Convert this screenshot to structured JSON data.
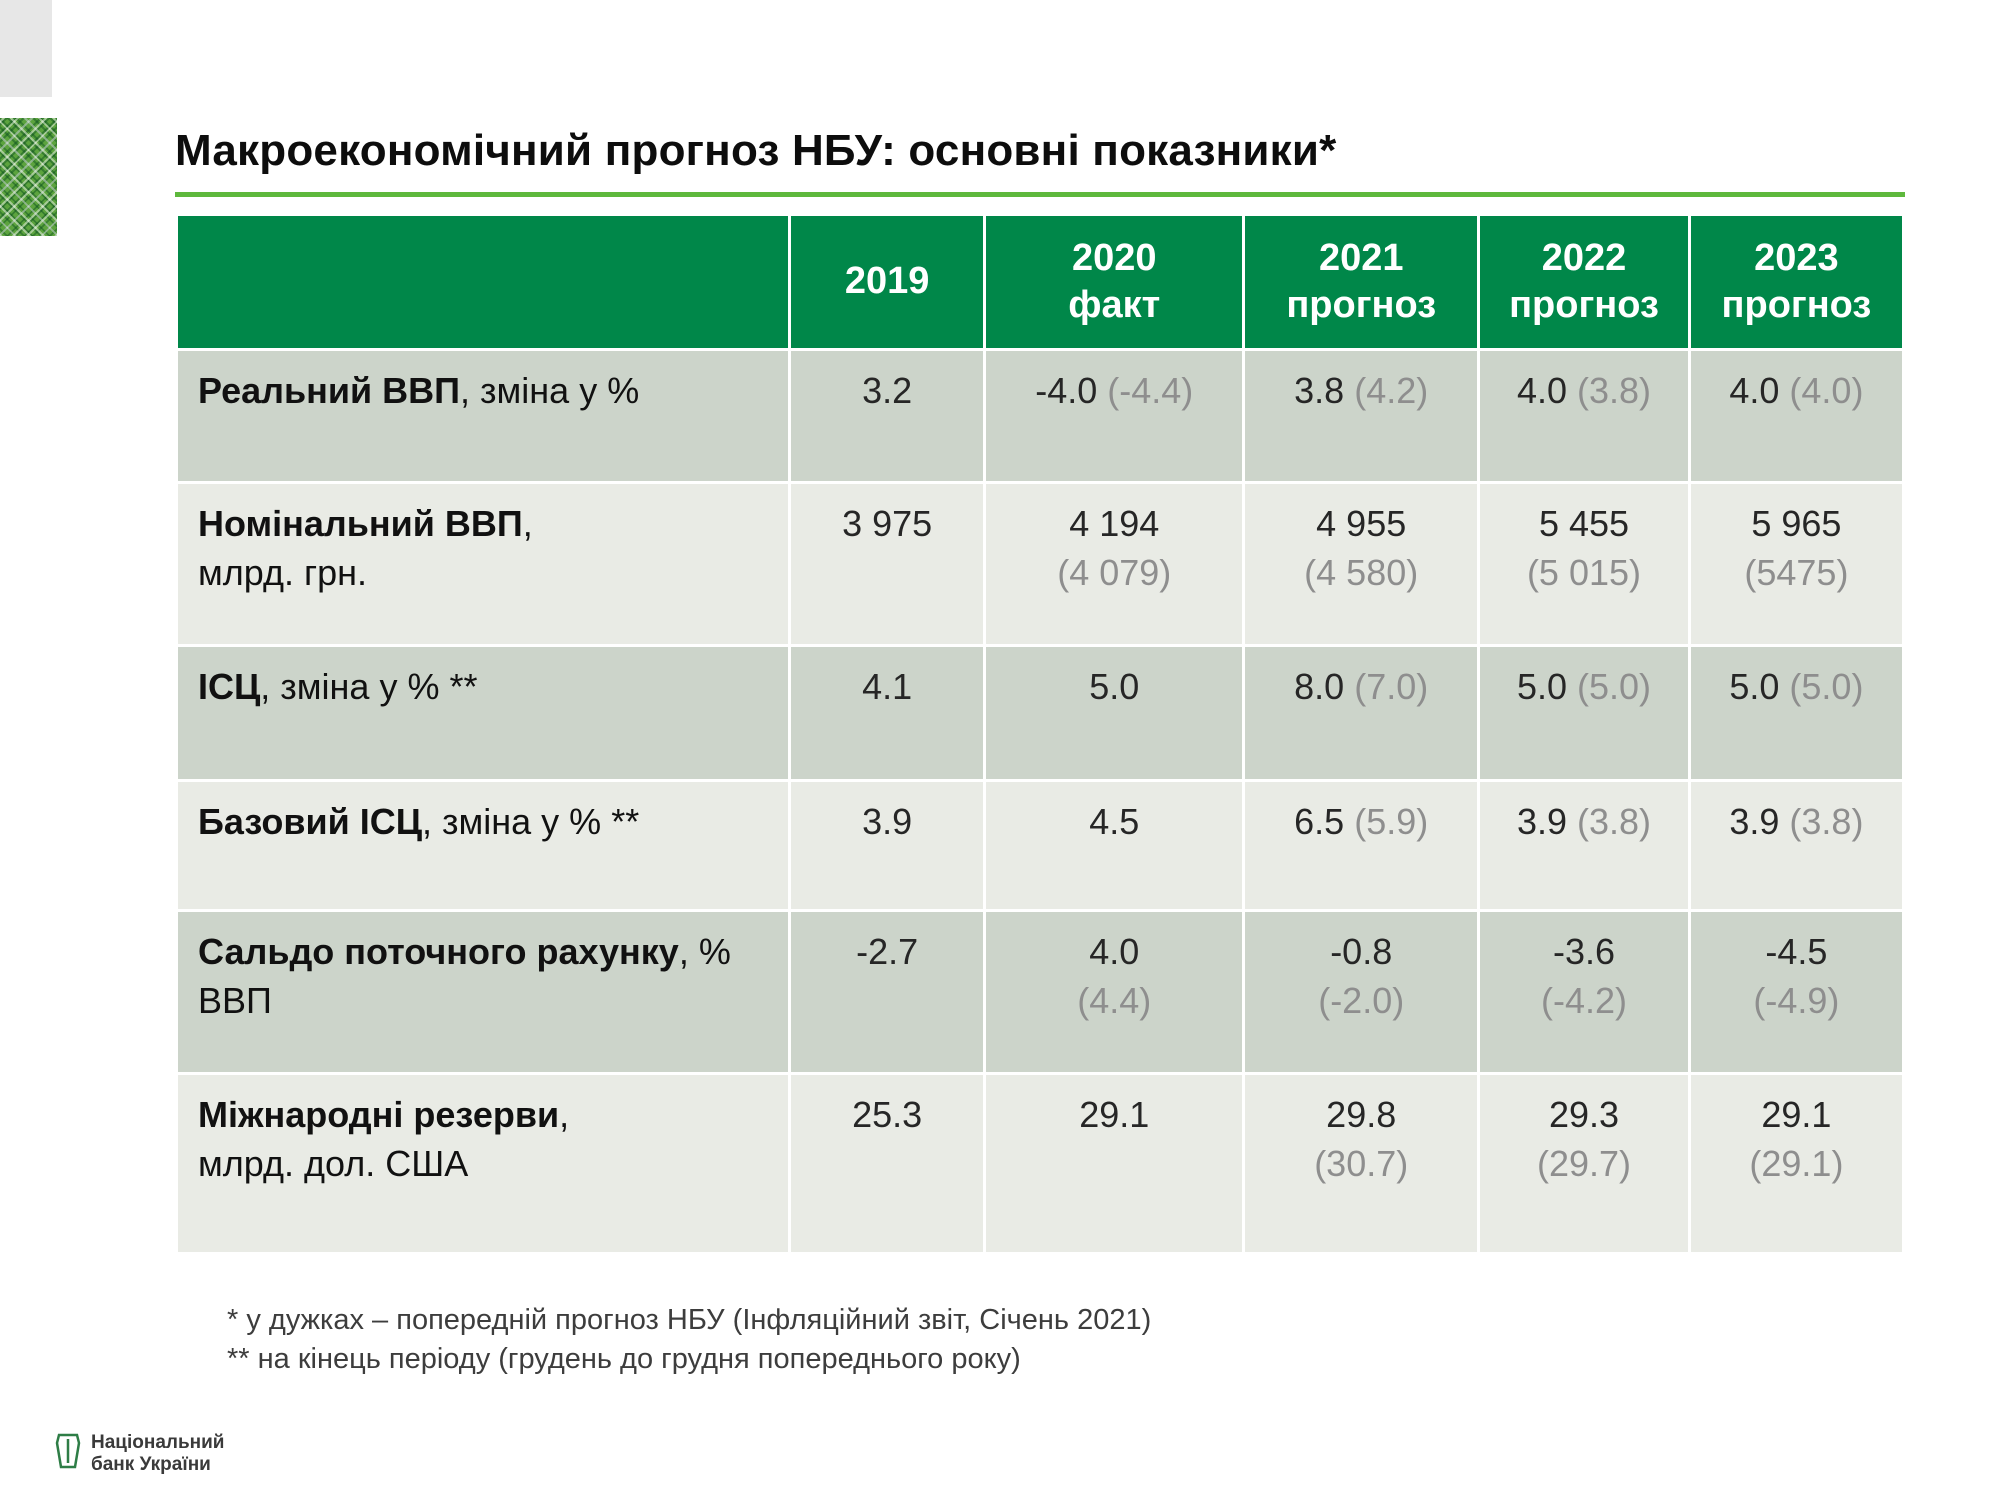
{
  "slide": {
    "title": "Макроекономічний прогноз НБУ: основні показники*",
    "footnote1": "* у дужках – попередній прогноз НБУ (Інфляційний звіт, Січень 2021)",
    "footnote2": "** на кінець періоду (грудень до грудня попереднього року)",
    "logo_line1": "Національний",
    "logo_line2": "банк України"
  },
  "colors": {
    "header_bg": "#008749",
    "row_dark": "#ccd4ca",
    "row_light": "#e9ebe5",
    "prev_text": "#8e8e8e",
    "accent_green": "#5eb83c"
  },
  "table": {
    "header": [
      {
        "lines": [
          ""
        ]
      },
      {
        "lines": [
          "2019"
        ]
      },
      {
        "lines": [
          "2020",
          "факт"
        ]
      },
      {
        "lines": [
          "2021",
          "прогноз"
        ]
      },
      {
        "lines": [
          "2022",
          "прогноз"
        ]
      },
      {
        "lines": [
          "2023",
          "прогноз"
        ]
      }
    ],
    "rows": [
      {
        "label_bold": "Реальний ВВП",
        "label_rest": ", зміна у %",
        "label_line2": "",
        "stacked": false,
        "cells": [
          {
            "main": "3.2",
            "prev": ""
          },
          {
            "main": "-4.0",
            "prev": "(-4.4)"
          },
          {
            "main": "3.8",
            "prev": "(4.2)"
          },
          {
            "main": "4.0",
            "prev": "(3.8)"
          },
          {
            "main": "4.0",
            "prev": "(4.0)"
          }
        ]
      },
      {
        "label_bold": "Номінальний ВВП",
        "label_rest": ",",
        "label_line2": "млрд. грн.",
        "stacked": true,
        "cells": [
          {
            "main": "3 975",
            "prev": ""
          },
          {
            "main": "4 194",
            "prev": "(4 079)"
          },
          {
            "main": "4 955",
            "prev": "(4 580)"
          },
          {
            "main": "5 455",
            "prev": "(5 015)"
          },
          {
            "main": "5 965",
            "prev": "(5475)"
          }
        ]
      },
      {
        "label_bold": "ІСЦ",
        "label_rest": ", зміна у % **",
        "label_line2": "",
        "stacked": false,
        "cells": [
          {
            "main": "4.1",
            "prev": ""
          },
          {
            "main": "5.0",
            "prev": ""
          },
          {
            "main": "8.0",
            "prev": "(7.0)"
          },
          {
            "main": "5.0",
            "prev": "(5.0)"
          },
          {
            "main": "5.0",
            "prev": "(5.0)"
          }
        ]
      },
      {
        "label_bold": "Базовий ІСЦ",
        "label_rest": ", зміна у % **",
        "label_line2": "",
        "stacked": false,
        "cells": [
          {
            "main": "3.9",
            "prev": ""
          },
          {
            "main": "4.5",
            "prev": ""
          },
          {
            "main": "6.5",
            "prev": "(5.9)"
          },
          {
            "main": "3.9",
            "prev": "(3.8)"
          },
          {
            "main": "3.9",
            "prev": "(3.8)"
          }
        ]
      },
      {
        "label_bold": "Сальдо поточного рахунку",
        "label_rest": ", % ВВП",
        "label_line2": "",
        "stacked": true,
        "cells": [
          {
            "main": "-2.7",
            "prev": ""
          },
          {
            "main": "4.0",
            "prev": "(4.4)"
          },
          {
            "main": "-0.8",
            "prev": "(-2.0)"
          },
          {
            "main": "-3.6",
            "prev": "(-4.2)"
          },
          {
            "main": "-4.5",
            "prev": "(-4.9)"
          }
        ]
      },
      {
        "label_bold": "Міжнародні резерви",
        "label_rest": ",",
        "label_line2": "млрд. дол. США",
        "stacked": true,
        "cells": [
          {
            "main": "25.3",
            "prev": ""
          },
          {
            "main": "29.1",
            "prev": ""
          },
          {
            "main": "29.8",
            "prev": "(30.7)"
          },
          {
            "main": "29.3",
            "prev": "(29.7)"
          },
          {
            "main": "29.1",
            "prev": "(29.1)"
          }
        ]
      }
    ]
  }
}
